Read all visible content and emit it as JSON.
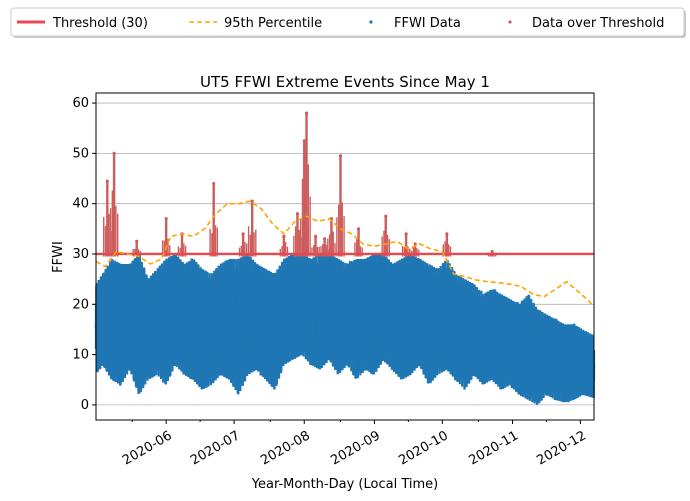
{
  "chart_data": {
    "type": "scatter",
    "title": "UT5 FFWI Extreme Events Since May 1",
    "xlabel": "Year-Month-Day (Local Time)",
    "ylabel": "FFWI",
    "xlim": [
      "2020-05-01",
      "2020-12-07"
    ],
    "ylim": [
      -3,
      62
    ],
    "x_ticks": [
      "2020-06",
      "2020-07",
      "2020-08",
      "2020-09",
      "2020-10",
      "2020-11",
      "2020-12"
    ],
    "y_ticks": [
      0,
      10,
      20,
      30,
      40,
      50,
      60
    ],
    "grid": "horizontal",
    "legend_position": "top, outside plot, single row",
    "legend": [
      "Threshold (30)",
      "95th Percentile",
      "FFWI Data",
      "Data over Threshold"
    ],
    "colors": {
      "threshold": "#e8474f",
      "percentile": "#ffa500",
      "data": "#1f77b4",
      "over_threshold": "#cd5c5c"
    },
    "threshold": 30,
    "percentile_95": {
      "name": "95th Percentile",
      "x": [
        "2020-05-01",
        "2020-05-05",
        "2020-05-10",
        "2020-05-15",
        "2020-05-20",
        "2020-05-25",
        "2020-05-30",
        "2020-06-03",
        "2020-06-08",
        "2020-06-13",
        "2020-06-18",
        "2020-06-23",
        "2020-06-28",
        "2020-07-03",
        "2020-07-08",
        "2020-07-13",
        "2020-07-18",
        "2020-07-23",
        "2020-07-28",
        "2020-08-02",
        "2020-08-07",
        "2020-08-12",
        "2020-08-17",
        "2020-08-22",
        "2020-08-27",
        "2020-09-01",
        "2020-09-06",
        "2020-09-11",
        "2020-09-16",
        "2020-09-21",
        "2020-09-26",
        "2020-10-01",
        "2020-10-06",
        "2020-10-11",
        "2020-10-16",
        "2020-10-21",
        "2020-10-26",
        "2020-10-31",
        "2020-11-05",
        "2020-11-10",
        "2020-11-15",
        "2020-11-20",
        "2020-11-25",
        "2020-11-30",
        "2020-12-04",
        "2020-12-07"
      ],
      "y": [
        28.5,
        27.5,
        30.5,
        30,
        29.5,
        28,
        29,
        33.5,
        34,
        33.5,
        35,
        38,
        40,
        40,
        40.5,
        39,
        36,
        34,
        36.5,
        37.5,
        36.5,
        37,
        35,
        34,
        32,
        31.5,
        32,
        32.5,
        31,
        32,
        31,
        30.5,
        26,
        25.5,
        24.8,
        24.5,
        24.3,
        24,
        23.5,
        22,
        21.5,
        23,
        24.5,
        22.5,
        21,
        19.5
      ]
    },
    "ffwi_data": {
      "name": "FFWI Data",
      "x": [
        "2020-05-01",
        "2020-05-04",
        "2020-05-08",
        "2020-05-12",
        "2020-05-16",
        "2020-05-20",
        "2020-05-24",
        "2020-05-28",
        "2020-06-01",
        "2020-06-05",
        "2020-06-09",
        "2020-06-13",
        "2020-06-17",
        "2020-06-21",
        "2020-06-25",
        "2020-06-29",
        "2020-07-03",
        "2020-07-07",
        "2020-07-11",
        "2020-07-15",
        "2020-07-19",
        "2020-07-23",
        "2020-07-27",
        "2020-07-31",
        "2020-08-04",
        "2020-08-08",
        "2020-08-12",
        "2020-08-16",
        "2020-08-20",
        "2020-08-24",
        "2020-08-28",
        "2020-09-01",
        "2020-09-05",
        "2020-09-09",
        "2020-09-13",
        "2020-09-17",
        "2020-09-21",
        "2020-09-25",
        "2020-09-29",
        "2020-10-03",
        "2020-10-07",
        "2020-10-11",
        "2020-10-15",
        "2020-10-19",
        "2020-10-23",
        "2020-10-27",
        "2020-10-31",
        "2020-11-04",
        "2020-11-08",
        "2020-11-12",
        "2020-11-16",
        "2020-11-20",
        "2020-11-24",
        "2020-11-28",
        "2020-12-02",
        "2020-12-06"
      ],
      "min": [
        6,
        8,
        5,
        4,
        7,
        2,
        5,
        6,
        4,
        8,
        6,
        5,
        3,
        4,
        6,
        5,
        2,
        6,
        7,
        5,
        3,
        8,
        9,
        10,
        8,
        7,
        9,
        6,
        8,
        5,
        7,
        6,
        9,
        7,
        5,
        6,
        8,
        4,
        6,
        7,
        5,
        3,
        6,
        4,
        5,
        3,
        4,
        2,
        1,
        0,
        2,
        1,
        0.5,
        1,
        2,
        1.5
      ],
      "max": [
        24,
        26,
        29,
        28,
        28,
        30,
        25,
        27,
        29,
        30,
        28,
        29,
        27,
        26,
        28,
        29,
        29,
        30,
        28,
        27,
        26,
        29,
        30,
        30,
        29,
        30,
        30,
        29,
        28,
        29,
        29,
        30,
        30,
        28,
        29,
        30,
        29,
        28,
        27,
        29,
        26,
        25,
        24,
        22,
        23,
        22,
        21,
        20,
        22,
        19,
        18,
        17,
        16,
        16,
        15,
        14
      ]
    },
    "over_threshold": {
      "name": "Data over Threshold",
      "x": [
        "2020-05-06",
        "2020-05-09",
        "2020-05-19",
        "2020-06-01",
        "2020-06-08",
        "2020-06-22",
        "2020-07-05",
        "2020-07-09",
        "2020-07-23",
        "2020-07-29",
        "2020-08-01",
        "2020-08-02",
        "2020-08-06",
        "2020-08-10",
        "2020-08-13",
        "2020-08-17",
        "2020-08-25",
        "2020-09-06",
        "2020-09-15",
        "2020-09-19",
        "2020-10-03",
        "2020-10-23"
      ],
      "max": [
        44.5,
        50,
        32.5,
        37,
        34,
        44,
        34,
        40.5,
        33.5,
        38,
        52.5,
        58,
        33.5,
        33,
        37,
        49.5,
        35,
        37.5,
        34,
        32,
        34,
        30.5
      ]
    }
  }
}
